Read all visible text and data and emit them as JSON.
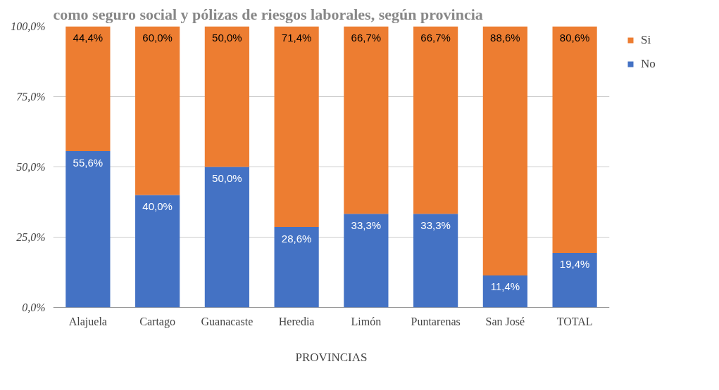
{
  "chart_data": {
    "type": "bar",
    "stacked": true,
    "title": "como seguro social y pólizas de riesgos laborales, según provincia",
    "xlabel": "PROVINCIAS",
    "categories": [
      "Alajuela",
      "Cartago",
      "Guanacaste",
      "Heredia",
      "Limón",
      "Puntarenas",
      "San José",
      "TOTAL"
    ],
    "series": [
      {
        "name": "No",
        "color": "#4472c4",
        "values": [
          55.6,
          40.0,
          50.0,
          28.6,
          33.3,
          33.3,
          11.4,
          19.4
        ],
        "value_labels": [
          "55,6%",
          "40,0%",
          "50,0%",
          "28,6%",
          "33,3%",
          "33,3%",
          "11,4%",
          "19,4%"
        ]
      },
      {
        "name": "Si",
        "color": "#ed7d31",
        "values": [
          44.4,
          60.0,
          50.0,
          71.4,
          66.7,
          66.7,
          88.6,
          80.6
        ],
        "value_labels": [
          "44,4%",
          "60,0%",
          "50,0%",
          "71,4%",
          "66,7%",
          "66,7%",
          "88,6%",
          "80,6%"
        ]
      }
    ],
    "ylim": [
      0,
      100
    ],
    "yticks": [
      {
        "value": 0,
        "label": "0,0%"
      },
      {
        "value": 25,
        "label": "25,0%"
      },
      {
        "value": 50,
        "label": "50,0%"
      },
      {
        "value": 75,
        "label": "75,0%"
      },
      {
        "value": 100,
        "label": "100,0%"
      }
    ],
    "grid": "y",
    "legend": "top right"
  }
}
